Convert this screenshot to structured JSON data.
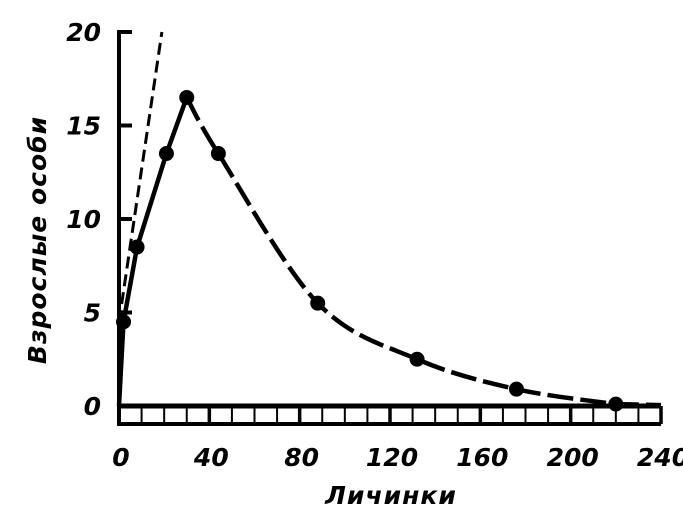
{
  "chart_data": {
    "type": "line",
    "xlabel": "Личинки",
    "ylabel": "Взрослые особи",
    "xlim": [
      0,
      240
    ],
    "ylim": [
      0,
      20
    ],
    "x_ticks": [
      "0",
      "40",
      "80",
      "120",
      "160",
      "200",
      "240"
    ],
    "y_ticks": [
      "0",
      "5",
      "10",
      "15",
      "20"
    ],
    "grid": false,
    "series": [
      {
        "style": "solid-dashed-markers",
        "x": [
          2,
          8,
          21,
          30,
          44,
          88,
          132,
          176,
          220
        ],
        "y": [
          4.5,
          8.5,
          13.5,
          16.5,
          13.5,
          5.5,
          2.5,
          0.9,
          0.1
        ]
      },
      {
        "style": "dashed",
        "x": [
          0,
          19
        ],
        "y": [
          4.5,
          20
        ]
      }
    ],
    "colors": {
      "ink": "#000000",
      "background": "#ffffff"
    }
  }
}
